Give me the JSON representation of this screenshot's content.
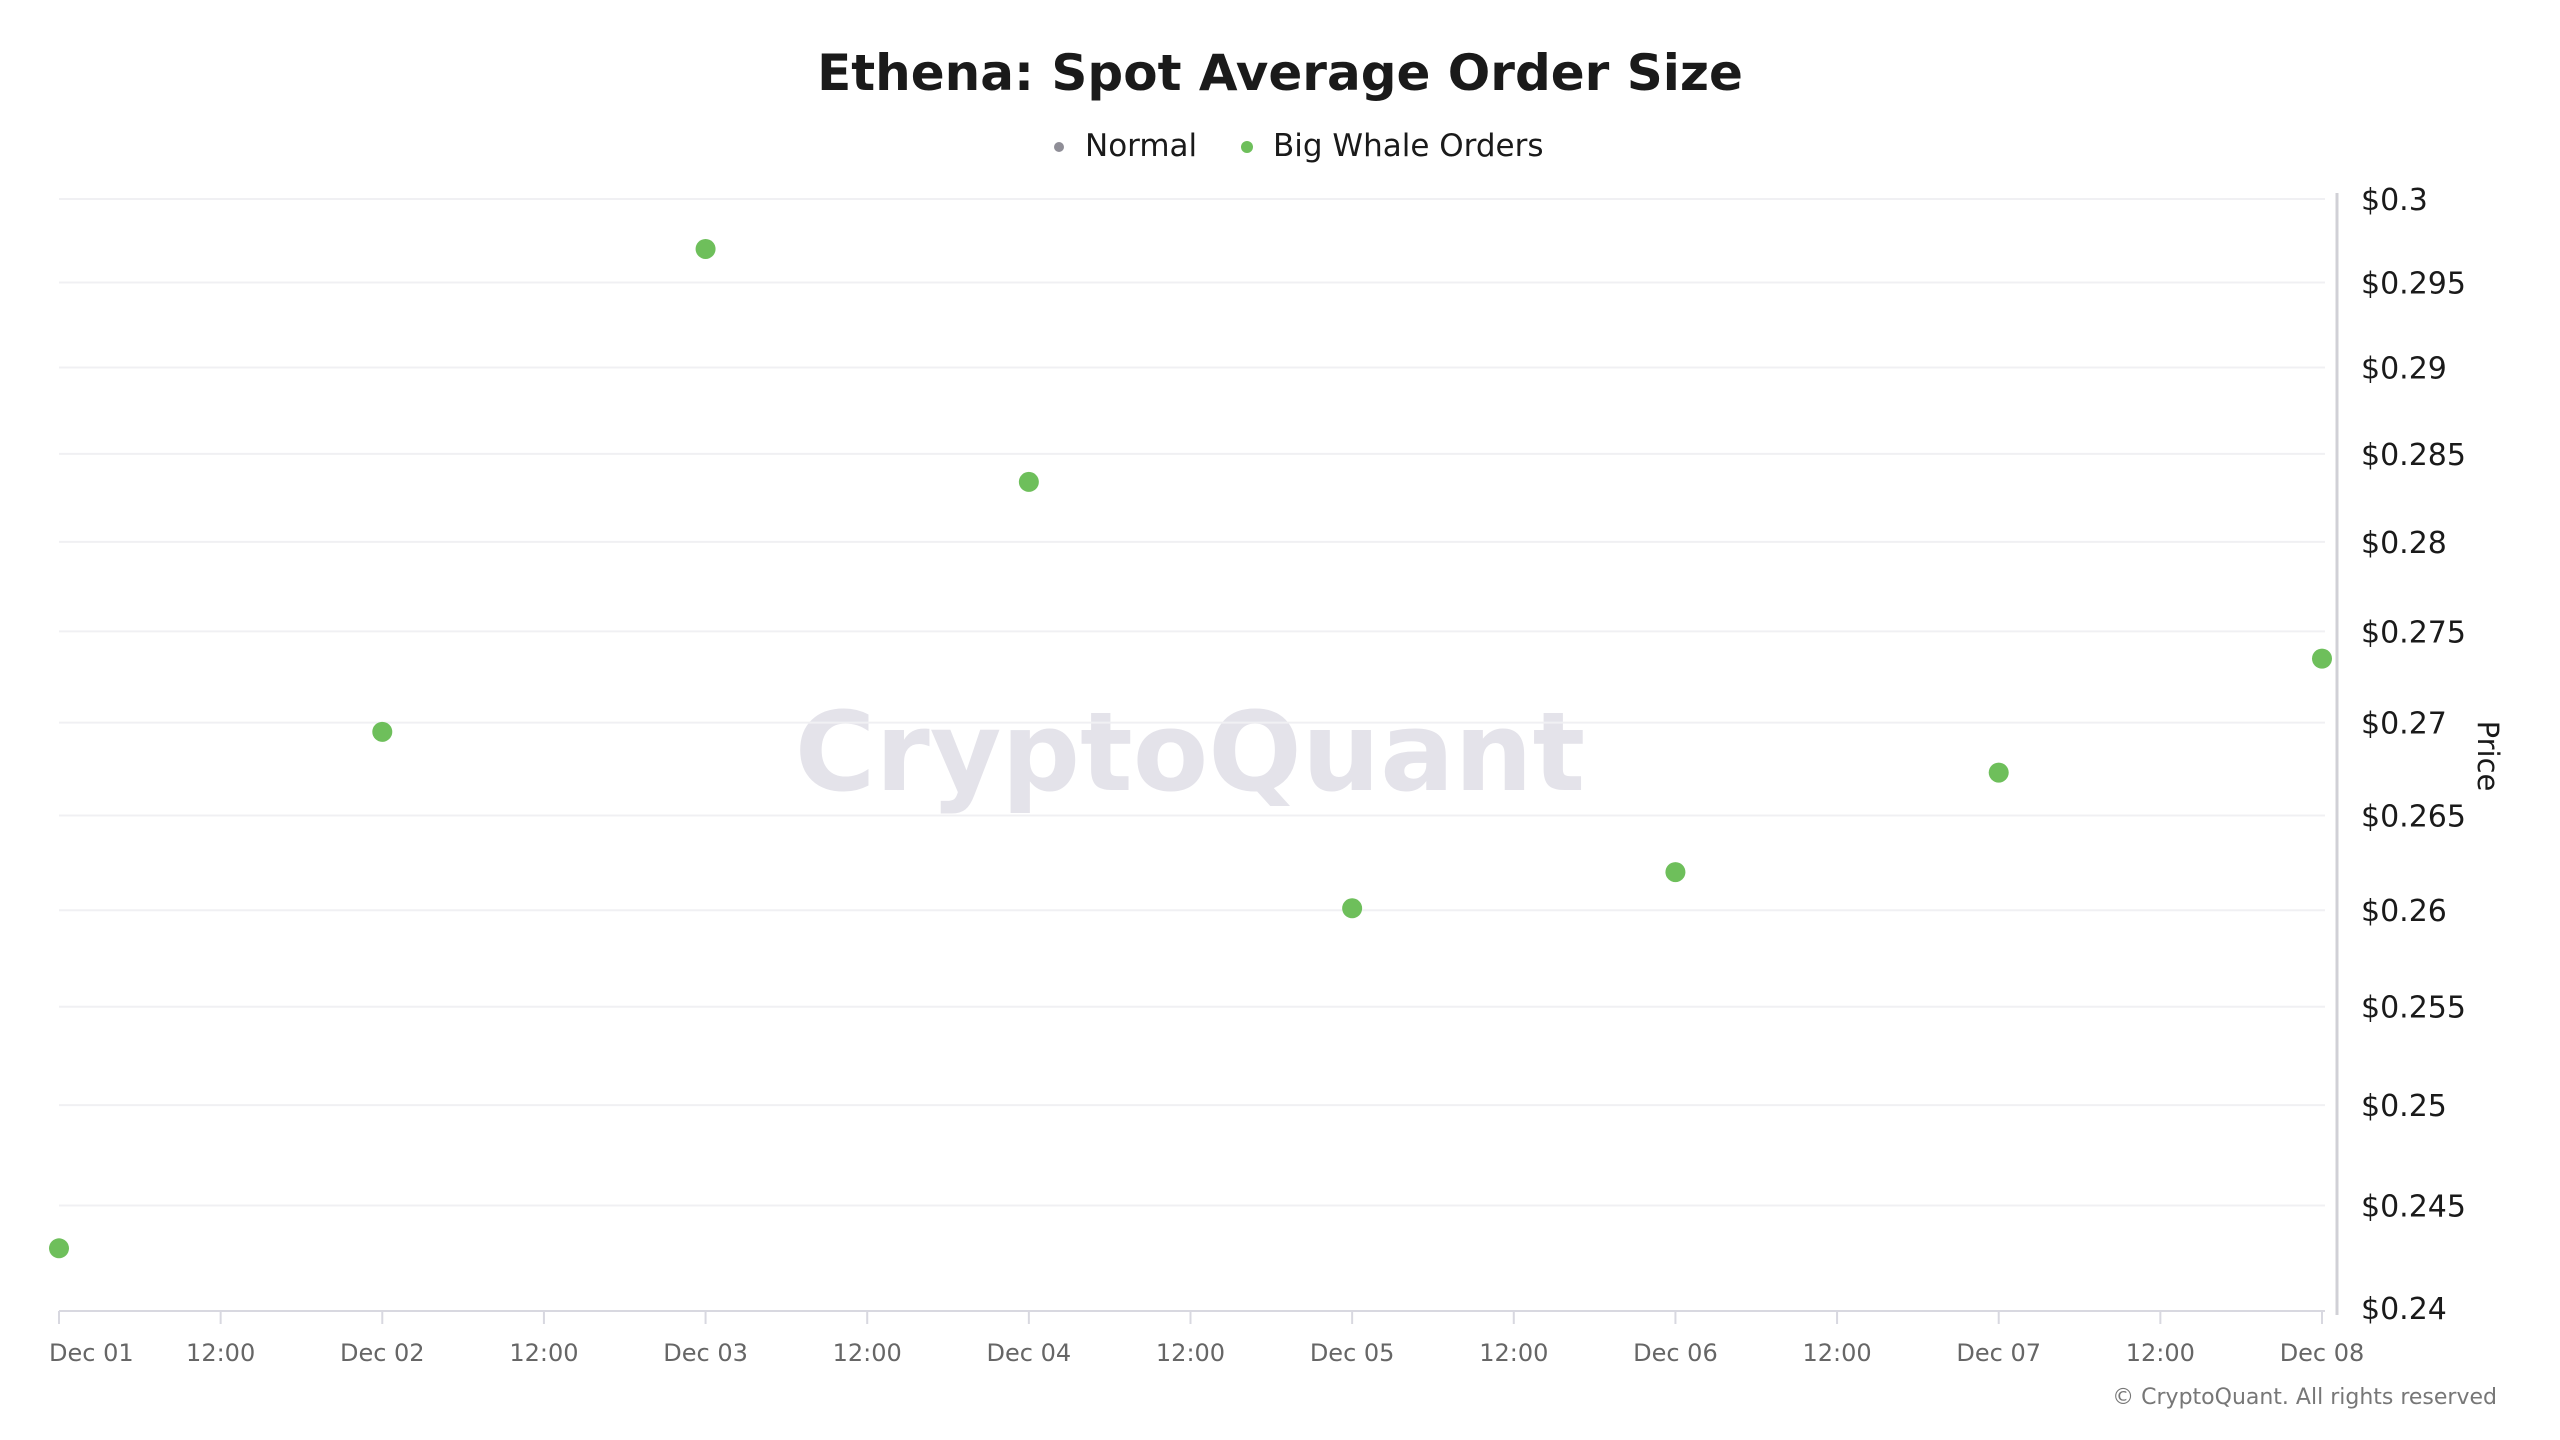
{
  "chart_data": {
    "type": "scatter",
    "title": "Ethena: Spot Average Order Size",
    "legend": [
      {
        "name": "Normal",
        "color": "#8f8e97"
      },
      {
        "name": "Big Whale Orders",
        "color": "#6ebf5b"
      }
    ],
    "legend_position": "top-center",
    "ylabel": "Price",
    "y_axis_side": "right",
    "y_scale": "log",
    "ylim": [
      0.24,
      0.3
    ],
    "y_ticks": [
      "$0.3",
      "$0.295",
      "$0.29",
      "$0.285",
      "$0.28",
      "$0.275",
      "$0.27",
      "$0.265",
      "$0.26",
      "$0.255",
      "$0.25",
      "$0.245",
      "$0.24"
    ],
    "y_tick_values": [
      0.3,
      0.295,
      0.29,
      0.285,
      0.28,
      0.275,
      0.27,
      0.265,
      0.26,
      0.255,
      0.25,
      0.245,
      0.24
    ],
    "x_ticks": [
      "Dec 01",
      "12:00",
      "Dec 02",
      "12:00",
      "Dec 03",
      "12:00",
      "Dec 04",
      "12:00",
      "Dec 05",
      "12:00",
      "Dec 06",
      "12:00",
      "Dec 07",
      "12:00",
      "Dec 08"
    ],
    "grid": true,
    "series": [
      {
        "name": "Normal",
        "x": [],
        "y": []
      },
      {
        "name": "Big Whale Orders",
        "x": [
          "Dec 01",
          "Dec 02",
          "Dec 03",
          "Dec 04",
          "Dec 05",
          "Dec 06",
          "Dec 07",
          "Dec 08"
        ],
        "y": [
          0.2429,
          0.2695,
          0.297,
          0.2834,
          0.2601,
          0.262,
          0.2673,
          0.2735
        ]
      }
    ]
  },
  "watermark": "CryptoQuant",
  "footer": "© CryptoQuant. All rights reserved"
}
